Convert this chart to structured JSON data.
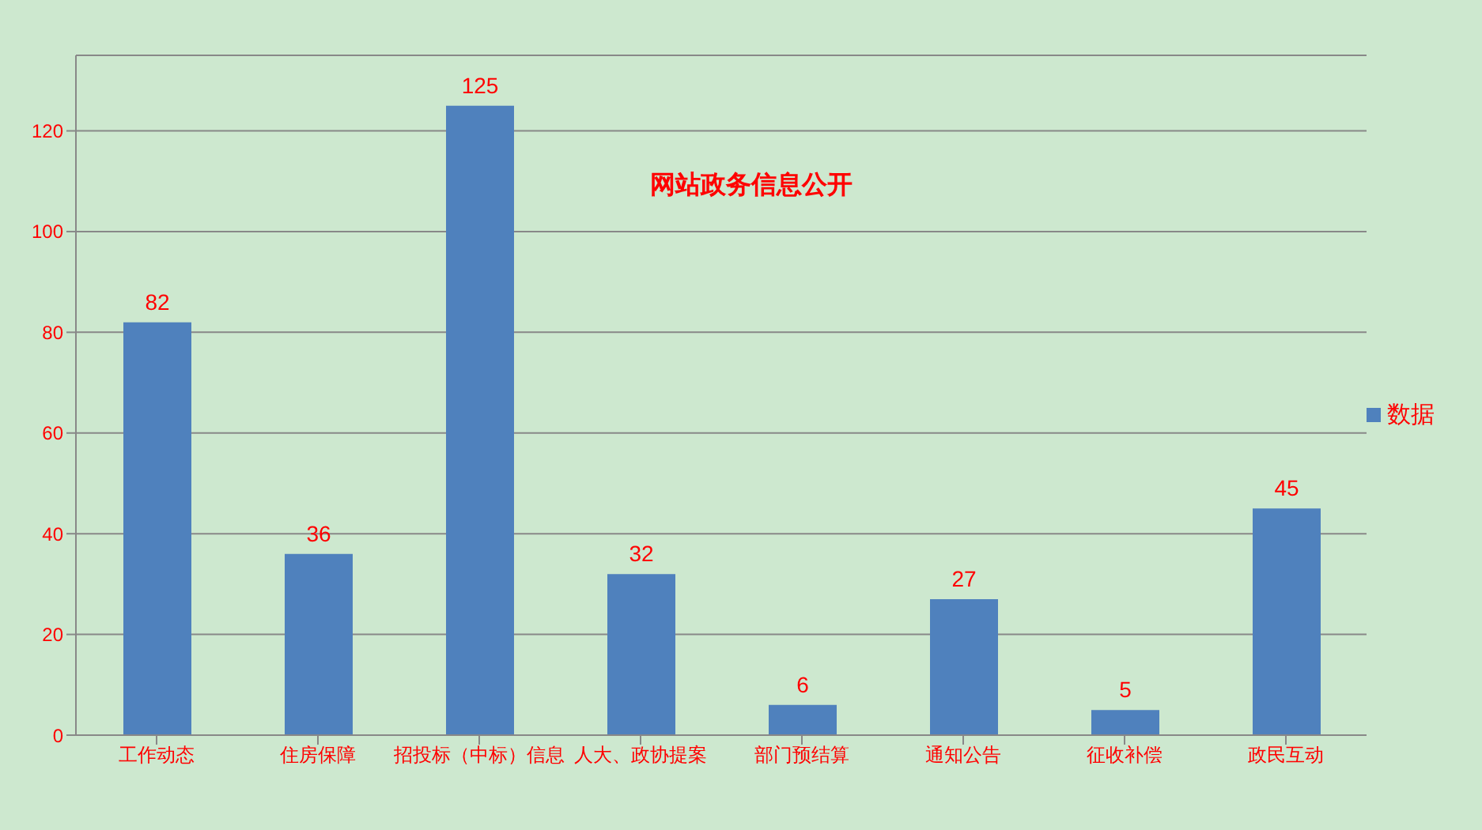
{
  "chart_data": {
    "type": "bar",
    "title": "网站政务信息公开",
    "categories": [
      "工作动态",
      "住房保障",
      "招投标（中标）信息",
      "人大、政协提案",
      "部门预结算",
      "通知公告",
      "征收补偿",
      "政民互动"
    ],
    "series": [
      {
        "name": "数据",
        "color": "#4f81bd",
        "values": [
          82,
          36,
          125,
          32,
          6,
          27,
          5,
          45
        ]
      }
    ],
    "ylim": [
      0,
      135
    ],
    "yticks": [
      0,
      20,
      40,
      60,
      80,
      100,
      120
    ],
    "grid": "y",
    "legend": "right",
    "data_labels": true
  }
}
